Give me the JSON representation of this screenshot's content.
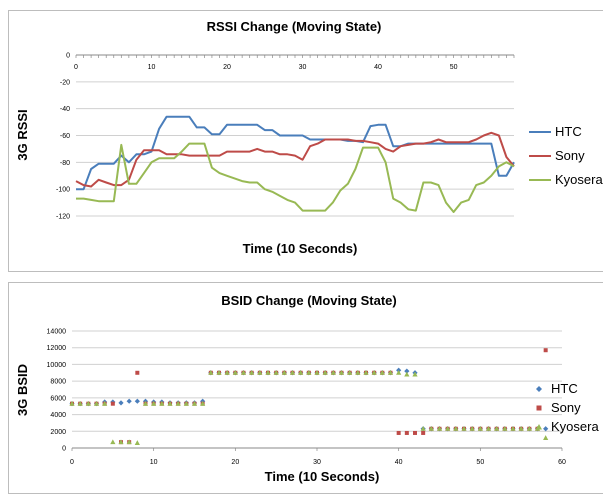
{
  "chart_data": [
    {
      "type": "line",
      "title": "RSSI Change (Moving State)",
      "xlabel": "Time (10 Seconds)",
      "ylabel": "3G RSSI",
      "xlim": [
        0,
        58
      ],
      "ylim": [
        -120,
        0
      ],
      "xticks": [
        0,
        10,
        20,
        30,
        40,
        50
      ],
      "yticks": [
        0,
        -20,
        -40,
        -60,
        -80,
        -100,
        -120
      ],
      "legend": "right",
      "grid": "horizontal",
      "series": [
        {
          "name": "HTC",
          "color": "#4a7ebb",
          "x": [
            0,
            1,
            2,
            3,
            4,
            5,
            6,
            7,
            8,
            9,
            10,
            11,
            12,
            13,
            14,
            15,
            16,
            17,
            18,
            19,
            20,
            21,
            22,
            23,
            24,
            25,
            26,
            27,
            28,
            29,
            30,
            31,
            32,
            33,
            34,
            35,
            36,
            37,
            38,
            39,
            40,
            41,
            42,
            43,
            44,
            45,
            46,
            47,
            48,
            49,
            50,
            51,
            52,
            53,
            54,
            55,
            56,
            57,
            58
          ],
          "values": [
            -100,
            -100,
            -85,
            -81,
            -81,
            -81,
            -75,
            -80,
            -74,
            -74,
            -72,
            -55,
            -46,
            -46,
            -46,
            -46,
            -54,
            -54,
            -59,
            -59,
            -52,
            -52,
            -52,
            -52,
            -52,
            -56,
            -56,
            -60,
            -60,
            -60,
            -60,
            -63,
            -63,
            -63,
            -63,
            -63,
            -64,
            -64,
            -65,
            -53,
            -52,
            -52,
            -68,
            -68,
            -66,
            -66,
            -66,
            -66,
            -66,
            -66,
            -66,
            -66,
            -66,
            -66,
            -66,
            -66,
            -90,
            -90,
            -80
          ]
        },
        {
          "name": "Sony",
          "color": "#be4b48",
          "x": [
            0,
            1,
            2,
            3,
            4,
            5,
            6,
            7,
            8,
            9,
            10,
            11,
            12,
            13,
            14,
            15,
            16,
            17,
            18,
            19,
            20,
            21,
            22,
            23,
            24,
            25,
            26,
            27,
            28,
            29,
            30,
            31,
            32,
            33,
            34,
            35,
            36,
            37,
            38,
            39,
            40,
            41,
            42,
            43,
            44,
            45,
            46,
            47,
            48,
            49,
            50,
            51,
            52,
            53,
            54,
            55,
            56,
            57,
            58
          ],
          "values": [
            -94,
            -97,
            -98,
            -93,
            -95,
            -97,
            -97,
            -93,
            -78,
            -71,
            -71,
            -71,
            -74,
            -74,
            -74,
            -75,
            -75,
            -75,
            -75,
            -75,
            -72,
            -72,
            -72,
            -72,
            -70,
            -72,
            -72,
            -74,
            -74,
            -75,
            -78,
            -68,
            -66,
            -63,
            -63,
            -63,
            -63,
            -64,
            -64,
            -65,
            -66,
            -70,
            -72,
            -68,
            -67,
            -66,
            -66,
            -65,
            -63,
            -65,
            -65,
            -65,
            -65,
            -63,
            -60,
            -58,
            -60,
            -76,
            -83
          ]
        },
        {
          "name": "Kyosera",
          "color": "#98b954",
          "x": [
            0,
            1,
            2,
            3,
            4,
            5,
            6,
            7,
            8,
            9,
            10,
            11,
            12,
            13,
            14,
            15,
            16,
            17,
            18,
            19,
            20,
            21,
            22,
            23,
            24,
            25,
            26,
            27,
            28,
            29,
            30,
            31,
            32,
            33,
            34,
            35,
            36,
            37,
            38,
            39,
            40,
            41,
            42,
            43,
            44,
            45,
            46,
            47,
            48,
            49,
            50,
            51,
            52,
            53,
            54,
            55,
            56,
            57,
            58
          ],
          "values": [
            -107,
            -107,
            -108,
            -109,
            -109,
            -109,
            -67,
            -96,
            -96,
            -88,
            -80,
            -77,
            -77,
            -77,
            -72,
            -66,
            -66,
            -66,
            -84,
            -88,
            -90,
            -92,
            -94,
            -95,
            -95,
            -100,
            -102,
            -105,
            -108,
            -110,
            -116,
            -116,
            -116,
            -116,
            -110,
            -101,
            -96,
            -85,
            -69,
            -69,
            -69,
            -80,
            -107,
            -110,
            -115,
            -116,
            -95,
            -95,
            -97,
            -110,
            -117,
            -110,
            -108,
            -97,
            -95,
            -90,
            -83,
            -80,
            -83
          ]
        }
      ]
    },
    {
      "type": "scatter",
      "title": "BSID Change (Moving State)",
      "xlabel": "Time (10 Seconds)",
      "ylabel": "3G BSID",
      "xlim": [
        0,
        60
      ],
      "ylim": [
        0,
        14000
      ],
      "xticks": [
        0,
        10,
        20,
        30,
        40,
        50,
        60
      ],
      "yticks": [
        0,
        2000,
        4000,
        6000,
        8000,
        10000,
        12000,
        14000
      ],
      "legend": "right",
      "grid": "horizontal",
      "series": [
        {
          "name": "HTC",
          "color": "#4a7ebb",
          "marker": "diamond",
          "x": [
            0,
            1,
            2,
            3,
            4,
            5,
            6,
            7,
            8,
            9,
            10,
            11,
            12,
            13,
            14,
            15,
            16,
            17,
            18,
            19,
            20,
            21,
            22,
            23,
            24,
            25,
            26,
            27,
            28,
            29,
            30,
            31,
            32,
            33,
            34,
            35,
            36,
            37,
            38,
            39,
            40,
            41,
            42,
            43,
            44,
            45,
            46,
            47,
            48,
            49,
            50,
            51,
            52,
            53,
            54,
            55,
            56,
            57,
            58
          ],
          "values": [
            5300,
            5300,
            5300,
            5300,
            5500,
            5500,
            5400,
            5600,
            5600,
            5600,
            5500,
            5500,
            5400,
            5400,
            5400,
            5400,
            5600,
            9000,
            9000,
            9000,
            9000,
            9000,
            9000,
            9000,
            9000,
            9000,
            9000,
            9000,
            9000,
            9000,
            9000,
            9000,
            9000,
            9000,
            9000,
            9000,
            9000,
            9000,
            9000,
            9000,
            9300,
            9200,
            9000,
            2300,
            2300,
            2300,
            2300,
            2300,
            2300,
            2300,
            2300,
            2300,
            2300,
            2300,
            2300,
            2300,
            2300,
            2300,
            2300
          ]
        },
        {
          "name": "Sony",
          "color": "#be4b48",
          "marker": "square",
          "x": [
            0,
            1,
            2,
            3,
            4,
            5,
            6,
            7,
            8,
            9,
            10,
            11,
            12,
            13,
            14,
            15,
            16,
            17,
            18,
            19,
            20,
            21,
            22,
            23,
            24,
            25,
            26,
            27,
            28,
            29,
            30,
            31,
            32,
            33,
            34,
            35,
            36,
            37,
            38,
            39,
            40,
            41,
            42,
            43,
            44,
            45,
            46,
            47,
            48,
            49,
            50,
            51,
            52,
            53,
            54,
            55,
            56,
            57,
            58
          ],
          "values": [
            5300,
            5300,
            5300,
            5300,
            5300,
            5300,
            700,
            700,
            9000,
            5300,
            5300,
            5300,
            5300,
            5300,
            5300,
            5300,
            5300,
            9000,
            9000,
            9000,
            9000,
            9000,
            9000,
            9000,
            9000,
            9000,
            9000,
            9000,
            9000,
            9000,
            9000,
            9000,
            9000,
            9000,
            9000,
            9000,
            9000,
            9000,
            9000,
            9000,
            1800,
            1800,
            1800,
            1800,
            2300,
            2300,
            2300,
            2300,
            2300,
            2300,
            2300,
            2300,
            2300,
            2300,
            2300,
            2300,
            2300,
            2300,
            11700
          ]
        },
        {
          "name": "Kyosera",
          "color": "#98b954",
          "marker": "triangle",
          "x": [
            0,
            1,
            2,
            3,
            4,
            5,
            6,
            7,
            8,
            9,
            10,
            11,
            12,
            13,
            14,
            15,
            16,
            17,
            18,
            19,
            20,
            21,
            22,
            23,
            24,
            25,
            26,
            27,
            28,
            29,
            30,
            31,
            32,
            33,
            34,
            35,
            36,
            37,
            38,
            39,
            40,
            41,
            42,
            43,
            44,
            45,
            46,
            47,
            48,
            49,
            50,
            51,
            52,
            53,
            54,
            55,
            56,
            57,
            58
          ],
          "values": [
            5300,
            5300,
            5300,
            5300,
            5300,
            700,
            700,
            700,
            600,
            5300,
            5300,
            5300,
            5300,
            5300,
            5300,
            5300,
            5300,
            9000,
            9000,
            9000,
            9000,
            9000,
            9000,
            9000,
            9000,
            9000,
            9000,
            9000,
            9000,
            9000,
            9000,
            9000,
            9000,
            9000,
            9000,
            9000,
            9000,
            9000,
            9000,
            9000,
            9000,
            8800,
            8800,
            2300,
            2300,
            2300,
            2300,
            2300,
            2300,
            2300,
            2300,
            2300,
            2300,
            2300,
            2300,
            2300,
            2300,
            2300,
            1200
          ]
        }
      ]
    }
  ]
}
